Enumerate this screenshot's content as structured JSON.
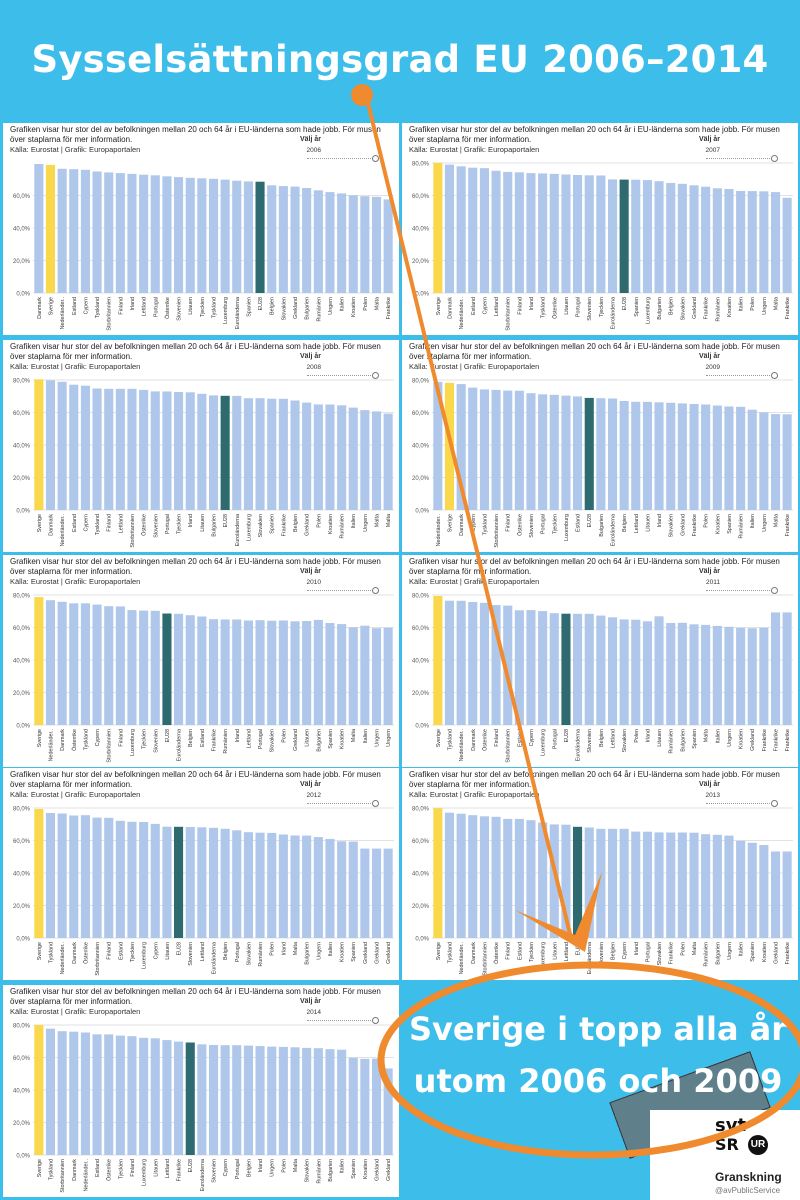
{
  "title": "Sysselsättningsgrad EU 2006–2014",
  "panel_text": {
    "description": "Grafiken visar hur stor del av befolkningen mellan 20 och 64 år i EU-länderna som hade jobb. För musen över staplarna för mer information.",
    "source": "Källa: Eurostat | Grafik: Europaportalen",
    "slider_label": "Välj år"
  },
  "colors": {
    "sweden": "#fad84b",
    "eu28": "#2e6b71",
    "other": "#afc7ea",
    "accent": "#ef8a2e",
    "background": "#3dbde9"
  },
  "callout": {
    "line1": "Sverige i topp alla år",
    "line2": "utom 2006 och 2009"
  },
  "logo": {
    "svt": "svt",
    "sr": "SR",
    "ur": "UR",
    "name": "Granskning",
    "handle": "@avPublicService"
  },
  "chart_data": [
    {
      "type": "bar",
      "year": "2006",
      "ylim": [
        0,
        80
      ],
      "yticks": [
        "0,0%",
        "20,0%",
        "40,0%",
        "60,0%"
      ],
      "categories": [
        "Danmark",
        "Sverige",
        "Nederländer..",
        "Estland",
        "Cypern",
        "Tyskland",
        "Storbritannien",
        "Finland",
        "Irland",
        "Lettland",
        "Portugal",
        "Österrike",
        "Slovenien",
        "Litauen",
        "Tjeckien",
        "Tyskland",
        "Luxemburg",
        "Euroländerna",
        "Spanien",
        "EU28",
        "Belgien",
        "Slovakien",
        "Grekland",
        "Bulgarien",
        "Rumänien",
        "Ungern",
        "Italien",
        "Kroatien",
        "Polen",
        "Malta",
        "Frankrike"
      ],
      "values": [
        79.4,
        78.8,
        76.4,
        76.2,
        75.8,
        74.8,
        74.2,
        73.8,
        73.3,
        72.8,
        72.4,
        71.8,
        71.3,
        70.9,
        70.6,
        70.3,
        69.8,
        69.1,
        68.7,
        68.5,
        66.3,
        65.8,
        65.5,
        64.6,
        63.2,
        62.1,
        61.3,
        60.1,
        59.6,
        59.2,
        57.6
      ]
    },
    {
      "type": "bar",
      "year": "2007",
      "ylim": [
        0,
        80
      ],
      "yticks": [
        "0,0%",
        "20,0%",
        "40,0%",
        "60,0%",
        "80,0%"
      ],
      "categories": [
        "Sverige",
        "Danmark",
        "Nederländer..",
        "Estland",
        "Cypern",
        "Lettland",
        "Storbritannien",
        "Finland",
        "Irland",
        "Tyskland",
        "Österrike",
        "Litauen",
        "Portugal",
        "Slovenien",
        "Tjeckien",
        "Euroländerna",
        "EU28",
        "Spanien",
        "Luxemburg",
        "Bulgarien",
        "Belgien",
        "Slovakien",
        "Grekland",
        "Frankrike",
        "Rumänien",
        "Kroatien",
        "Italien",
        "Polen",
        "Ungern",
        "Malta",
        "Frankrike"
      ],
      "values": [
        80.1,
        79.0,
        78.0,
        77.1,
        76.8,
        75.2,
        74.5,
        74.3,
        73.8,
        73.6,
        73.3,
        72.9,
        72.6,
        72.4,
        72.3,
        69.9,
        69.8,
        69.7,
        69.5,
        68.8,
        67.7,
        67.2,
        66.3,
        65.4,
        64.4,
        64.0,
        62.8,
        62.7,
        62.6,
        62.1,
        58.6
      ]
    },
    {
      "type": "bar",
      "year": "2008",
      "ylim": [
        0,
        80
      ],
      "yticks": [
        "0,0%",
        "20,0%",
        "40,0%",
        "60,0%",
        "80,0%"
      ],
      "categories": [
        "Sverige",
        "Danmark",
        "Nederländer..",
        "Estland",
        "Cypern",
        "Tyskland",
        "Finland",
        "Lettland",
        "Storbritannien",
        "Österrike",
        "Slovenien",
        "Portugal",
        "Tjeckien",
        "Irland",
        "Litauen",
        "Bulgarien",
        "EU28",
        "Euroländerna",
        "Luxemburg",
        "Slovakien",
        "Spanien",
        "Frankrike",
        "Belgien",
        "Grekland",
        "Polen",
        "Kroatien",
        "Rumänien",
        "Italien",
        "Ungern",
        "Malta",
        "Malta"
      ],
      "values": [
        80.4,
        79.8,
        78.9,
        77.1,
        76.5,
        74.8,
        74.6,
        74.6,
        74.6,
        73.9,
        73.0,
        72.9,
        72.6,
        72.4,
        71.5,
        70.5,
        70.3,
        70.2,
        68.8,
        68.8,
        68.5,
        68.4,
        67.4,
        66.1,
        65.0,
        64.9,
        64.4,
        63.0,
        61.5,
        60.7,
        59.3
      ]
    },
    {
      "type": "bar",
      "year": "2009",
      "ylim": [
        0,
        80
      ],
      "yticks": [
        "0,0%",
        "20,0%",
        "40,0%",
        "60,0%",
        "80,0%"
      ],
      "categories": [
        "Nederländer..",
        "Sverige",
        "Danmark",
        "Cypern",
        "Tyskland",
        "Storbritannien",
        "Finland",
        "Österrike",
        "Slovenien",
        "Portugal",
        "Tjeckien",
        "Luxemburg",
        "Estland",
        "EU28",
        "Bulgarien",
        "Euroländerna",
        "Belgien",
        "Lettland",
        "Litauen",
        "Irland",
        "Slovakien",
        "Grekland",
        "Frankrike",
        "Polen",
        "Kroatien",
        "Spanien",
        "Rumänien",
        "Italien",
        "Ungern",
        "Malta",
        "Frankrike"
      ],
      "values": [
        78.8,
        78.3,
        77.5,
        75.3,
        74.2,
        73.9,
        73.5,
        73.4,
        71.9,
        71.2,
        70.9,
        70.4,
        69.9,
        69.0,
        68.8,
        68.6,
        67.1,
        66.6,
        66.5,
        66.3,
        66.0,
        65.6,
        65.2,
        64.9,
        64.3,
        63.7,
        63.5,
        61.7,
        60.1,
        59.0,
        58.9
      ]
    },
    {
      "type": "bar",
      "year": "2010",
      "ylim": [
        0,
        80
      ],
      "yticks": [
        "0,0%",
        "20,0%",
        "40,0%",
        "60,0%",
        "80,0%"
      ],
      "categories": [
        "Sverige",
        "Nederländer..",
        "Danmark",
        "Österrike",
        "Tyskland",
        "Cypern",
        "Storbritannien",
        "Finland",
        "Luxemburg",
        "Tjeckien",
        "Slovenien",
        "EU28",
        "Euroländerna",
        "Belgien",
        "Estland",
        "Frankrike",
        "Rumänien",
        "Irland",
        "Lettland",
        "Portugal",
        "Slovakien",
        "Polen",
        "Grekland",
        "Litauen",
        "Bulgarien",
        "Spanien",
        "Kroatien",
        "Malta",
        "Italien",
        "Ungern",
        "Ungern"
      ],
      "values": [
        78.7,
        76.8,
        75.8,
        74.9,
        74.9,
        74.1,
        73.1,
        73.0,
        70.7,
        70.4,
        70.3,
        68.6,
        68.4,
        67.6,
        66.8,
        65.1,
        64.9,
        64.9,
        64.3,
        64.5,
        64.2,
        64.3,
        63.8,
        64.0,
        64.7,
        62.8,
        62.1,
        60.1,
        61.1,
        59.6,
        59.9
      ]
    },
    {
      "type": "bar",
      "year": "2011",
      "ylim": [
        0,
        80
      ],
      "yticks": [
        "0,0%",
        "20,0%",
        "40,0%",
        "60,0%",
        "80,0%"
      ],
      "categories": [
        "Sverige",
        "Tyskland",
        "Nederländer..",
        "Danmark",
        "Österrike",
        "Finland",
        "Storbritannien",
        "Estland",
        "Cypern",
        "Luxemburg",
        "Portugal",
        "EU28",
        "Euroländerna",
        "Slovenien",
        "Belgien",
        "Lettland",
        "Slovakien",
        "Polen",
        "Irland",
        "Litauen",
        "Rumänien",
        "Bulgarien",
        "Spanien",
        "Malta",
        "Italien",
        "Ungern",
        "Kroatien",
        "Grekland",
        "Frankrike",
        "Frankrike",
        "Frankrike"
      ],
      "values": [
        79.4,
        76.5,
        76.4,
        75.7,
        75.2,
        73.8,
        73.5,
        70.6,
        70.7,
        70.1,
        68.8,
        68.5,
        68.4,
        68.4,
        67.3,
        66.3,
        65.0,
        64.8,
        63.8,
        66.9,
        62.8,
        62.9,
        62.0,
        61.6,
        61.0,
        60.4,
        59.8,
        59.6,
        59.9,
        69.3,
        69.3
      ]
    },
    {
      "type": "bar",
      "year": "2012",
      "ylim": [
        0,
        80
      ],
      "yticks": [
        "0,0%",
        "20,0%",
        "40,0%",
        "60,0%",
        "80,0%"
      ],
      "categories": [
        "Sverige",
        "Tyskland",
        "Nederländer..",
        "Danmark",
        "Österrike",
        "Storbritannien",
        "Finland",
        "Estland",
        "Tjeckien",
        "Luxemburg",
        "Cypern",
        "Litauen",
        "EU28",
        "Slovenien",
        "Lettland",
        "Euroländerna",
        "Belgien",
        "Portugal",
        "Slovakien",
        "Rumänien",
        "Polen",
        "Irland",
        "Malta",
        "Bulgarien",
        "Ungern",
        "Italien",
        "Kroatien",
        "Spanien",
        "Grekland",
        "Grekland",
        "Grekland"
      ],
      "values": [
        79.4,
        76.9,
        76.6,
        75.4,
        75.6,
        74.1,
        74.0,
        72.1,
        71.5,
        71.4,
        70.2,
        68.5,
        68.4,
        68.3,
        68.1,
        67.8,
        67.2,
        66.3,
        65.1,
        64.8,
        64.7,
        63.7,
        63.1,
        63.0,
        62.1,
        61.0,
        59.5,
        59.3,
        55.0,
        55.0,
        55.0
      ]
    },
    {
      "type": "bar",
      "year": "2013",
      "ylim": [
        0,
        80
      ],
      "yticks": [
        "0,0%",
        "20,0%",
        "40,0%",
        "60,0%",
        "80,0%"
      ],
      "categories": [
        "Sverige",
        "Tyskland",
        "Nederländer..",
        "Danmark",
        "Storbritannien",
        "Österrike",
        "Finland",
        "Estland",
        "Tjeckien",
        "Luxemburg",
        "Litauen",
        "Lettland",
        "EU28",
        "Euroländerna",
        "Slovenien",
        "Belgien",
        "Cypern",
        "Irland",
        "Portugal",
        "Slovakien",
        "Frankrike",
        "Polen",
        "Malta",
        "Rumänien",
        "Bulgarien",
        "Ungern",
        "Italien",
        "Spanien",
        "Kroatien",
        "Grekland",
        "Frankrike"
      ],
      "values": [
        79.8,
        77.1,
        76.5,
        75.6,
        74.9,
        74.6,
        73.3,
        73.3,
        72.5,
        71.1,
        69.9,
        69.7,
        68.4,
        68.0,
        67.2,
        67.2,
        67.2,
        65.5,
        65.4,
        65.0,
        64.9,
        64.9,
        64.8,
        63.9,
        63.5,
        63.0,
        59.8,
        58.6,
        57.2,
        53.2,
        53.2
      ]
    },
    {
      "type": "bar",
      "year": "2014",
      "ylim": [
        0,
        80
      ],
      "yticks": [
        "0,0%",
        "20,0%",
        "40,0%",
        "60,0%",
        "80,0%"
      ],
      "categories": [
        "Sverige",
        "Tyskland",
        "Storbritannien",
        "Danmark",
        "Nederländer..",
        "Estland",
        "Österrike",
        "Tjeckien",
        "Finland",
        "Luxemburg",
        "Litauen",
        "Lettland",
        "Frankrike",
        "EU28",
        "Euroländerna",
        "Slovenien",
        "Cypern",
        "Portugal",
        "Belgien",
        "Irland",
        "Ungern",
        "Polen",
        "Malta",
        "Slovakien",
        "Rumänien",
        "Bulgarien",
        "Italien",
        "Spanien",
        "Kroatien",
        "Grekland",
        "Grekland"
      ],
      "values": [
        80.0,
        77.7,
        76.2,
        75.9,
        75.4,
        74.3,
        74.2,
        73.5,
        73.1,
        72.1,
        71.8,
        70.7,
        69.8,
        69.2,
        68.1,
        67.7,
        67.6,
        67.6,
        67.3,
        67.0,
        66.7,
        66.5,
        66.3,
        65.9,
        65.7,
        65.1,
        64.8,
        59.9,
        59.2,
        59.3,
        53.3
      ]
    }
  ]
}
